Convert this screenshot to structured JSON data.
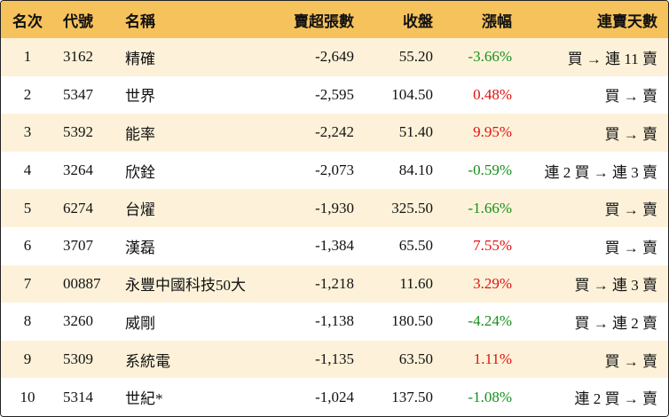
{
  "table": {
    "header": [
      "名次",
      "代號",
      "名稱",
      "賣超張數",
      "收盤",
      "漲幅",
      "連賣天數"
    ],
    "rows": [
      [
        "1",
        "3162",
        "精確",
        "-2,649",
        "55.20",
        "-3.66%",
        "買 → 連 11 賣"
      ],
      [
        "2",
        "5347",
        "世界",
        "-2,595",
        "104.50",
        "0.48%",
        "買 → 賣"
      ],
      [
        "3",
        "5392",
        "能率",
        "-2,242",
        "51.40",
        "9.95%",
        "買 → 賣"
      ],
      [
        "4",
        "3264",
        "欣銓",
        "-2,073",
        "84.10",
        "-0.59%",
        "連 2 買 → 連 3 賣"
      ],
      [
        "5",
        "6274",
        "台燿",
        "-1,930",
        "325.50",
        "-1.66%",
        "買 → 賣"
      ],
      [
        "6",
        "3707",
        "漢磊",
        "-1,384",
        "65.50",
        "7.55%",
        "買 → 賣"
      ],
      [
        "7",
        "00887",
        "永豐中國科技50大",
        "-1,218",
        "11.60",
        "3.29%",
        "買 → 連 3 賣"
      ],
      [
        "8",
        "3260",
        "威剛",
        "-1,138",
        "180.50",
        "-4.24%",
        "買 → 連 2 賣"
      ],
      [
        "9",
        "5309",
        "系統電",
        "-1,135",
        "63.50",
        "1.11%",
        "買 → 賣"
      ],
      [
        "10",
        "5314",
        "世紀*",
        "-1,024",
        "137.50",
        "-1.08%",
        "連 2 買 → 賣"
      ]
    ]
  }
}
